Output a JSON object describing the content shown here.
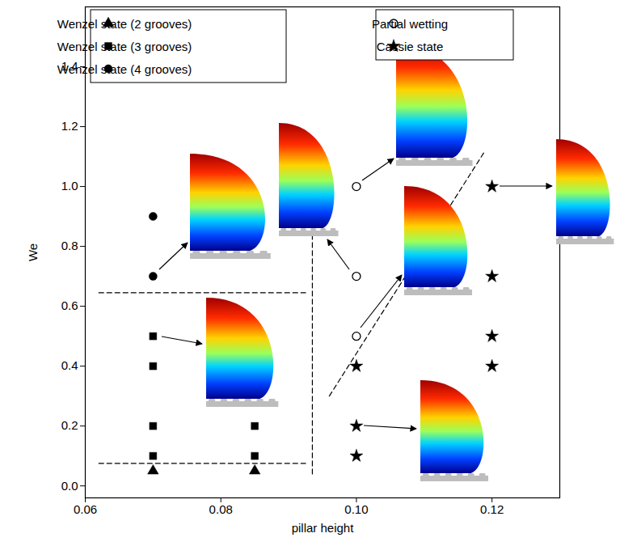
{
  "chart_data": {
    "type": "scatter",
    "x_label": "pillar height",
    "y_label": "We",
    "xlim": [
      0.06,
      0.13
    ],
    "xticks": [
      0.06,
      0.08,
      {
        "value": 0.1,
        "label": "0.10"
      },
      0.12
    ],
    "ylim": [
      -0.04,
      1.6
    ],
    "yticks": [
      {
        "value": 0,
        "label": "0.0"
      },
      0.2,
      0.4,
      0.6,
      0.8,
      {
        "value": 1,
        "label": "1.0"
      },
      1.2,
      1.4
    ],
    "grid": false,
    "legend": "top",
    "series": [
      {
        "name": "Wenzel state (2 grooves)",
        "marker": "triangle",
        "color": "#000000",
        "x": [
          0.07,
          0.085
        ],
        "y": [
          0.05,
          0.05
        ]
      },
      {
        "name": "Wenzel state (3 grooves)",
        "marker": "square",
        "color": "#000000",
        "x": [
          0.07,
          0.07,
          0.07,
          0.07,
          0.085,
          0.085
        ],
        "y": [
          0.1,
          0.2,
          0.4,
          0.5,
          0.1,
          0.2
        ]
      },
      {
        "name": "Wenzel state (4 grooves)",
        "marker": "circle",
        "color": "#000000",
        "x": [
          0.07,
          0.07
        ],
        "y": [
          0.7,
          0.9
        ]
      },
      {
        "name": "Partial wetting",
        "marker": "open_circle",
        "color": "#000000",
        "x": [
          0.1,
          0.1,
          0.1
        ],
        "y": [
          0.5,
          0.7,
          1.0
        ]
      },
      {
        "name": "Cassie state",
        "marker": "star",
        "color": "#000000",
        "x": [
          0.1,
          0.1,
          0.1,
          0.12,
          0.12,
          0.12,
          0.12
        ],
        "y": [
          0.1,
          0.2,
          0.4,
          0.4,
          0.5,
          0.7,
          1.0
        ]
      }
    ],
    "boundaries": [
      {
        "x": [
          0.062,
          0.0925
        ],
        "y": [
          0.645,
          0.645
        ],
        "line_style": "dashed"
      },
      {
        "x": [
          0.062,
          0.0925
        ],
        "y": [
          0.075,
          0.075
        ],
        "line_style": "dashed"
      },
      {
        "x": [
          0.0935,
          0.0935
        ],
        "y": [
          0.04,
          0.86
        ],
        "line_style": "dashed"
      },
      {
        "x": [
          0.096,
          0.119
        ],
        "y": [
          0.3,
          1.12
        ],
        "line_style": "dashed"
      }
    ]
  }
}
